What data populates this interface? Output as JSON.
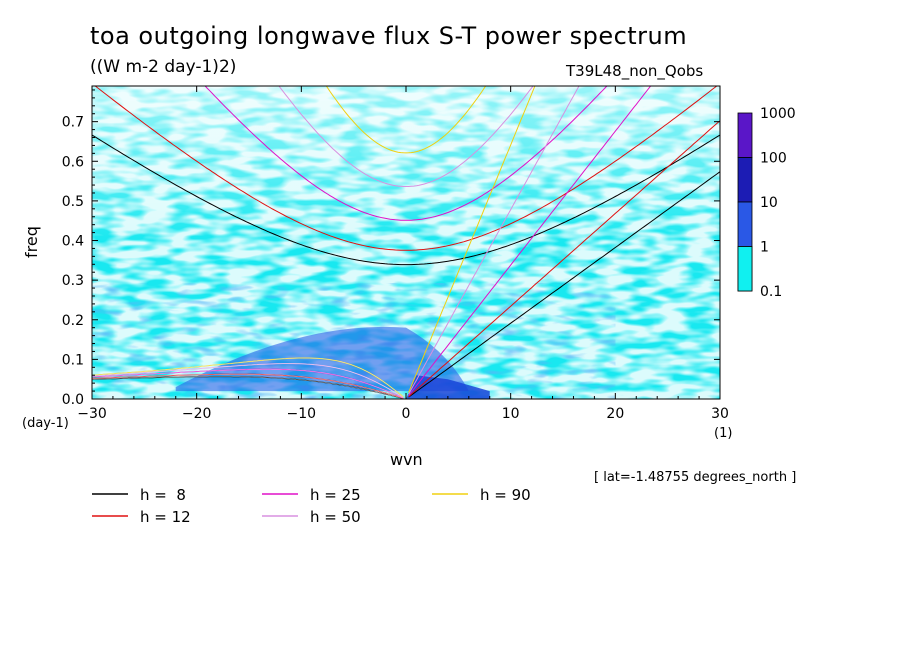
{
  "figure": {
    "title": "toa outgoing longwave flux S-T power spectrum",
    "units": "((W m-2 day-1)2)",
    "run_name": "T39L48_non_Qobs",
    "lat_note": "[ lat=-1.48755 degrees_north ]"
  },
  "chart_data": {
    "type": "heatmap",
    "xlabel": "wvn",
    "ylabel": "freq",
    "x_unit_label": "(day-1)",
    "x_unit_label2": "(1)",
    "xlim": [
      -30,
      30
    ],
    "ylim": [
      0,
      0.79
    ],
    "x_ticks": [
      -30,
      -20,
      -10,
      0,
      10,
      20,
      30
    ],
    "y_ticks": [
      0.0,
      0.1,
      0.2,
      0.3,
      0.4,
      0.5,
      0.6,
      0.7
    ],
    "y_tick_labels": [
      "0.0",
      "0.1",
      "0.2",
      "0.3",
      "0.4",
      "0.5",
      "0.6",
      "0.7"
    ],
    "colorbar": {
      "levels": [
        "1000",
        "100",
        "10",
        "1",
        "0.1"
      ],
      "colors": [
        "#5a16c8",
        "#1c1cb4",
        "#2a58e6",
        "#1e88ff",
        "#10f0f0"
      ]
    },
    "region_levels": [
      {
        "level": "0.1-1",
        "color": "#18e8f0",
        "area": "most of domain below freq 0.55"
      },
      {
        "level": "1-10",
        "color": "#2a78f0",
        "area": "freq 0-0.3 band, denser near wvn -15 to 5"
      },
      {
        "level": "10-100",
        "color": "#1a44d8",
        "area": "near origin, wvn 0-5, freq 0-0.05"
      }
    ],
    "dispersion_curves": [
      {
        "name": "h =  8",
        "color": "#000000"
      },
      {
        "name": "h = 12",
        "color": "#e01010"
      },
      {
        "name": "h = 25",
        "color": "#e010c8"
      },
      {
        "name": "h = 50",
        "color": "#d890e0"
      },
      {
        "name": "h = 90",
        "color": "#f0d010"
      }
    ],
    "equivalent_depths": [
      8,
      12,
      25,
      50,
      90
    ]
  },
  "legend": {
    "items": [
      {
        "label": "h =  8",
        "color": "#000000"
      },
      {
        "label": "h = 12",
        "color": "#e01010"
      },
      {
        "label": "h = 25",
        "color": "#e010c8"
      },
      {
        "label": "h = 50",
        "color": "#d890e0"
      },
      {
        "label": "h = 90",
        "color": "#f0d010"
      }
    ]
  }
}
